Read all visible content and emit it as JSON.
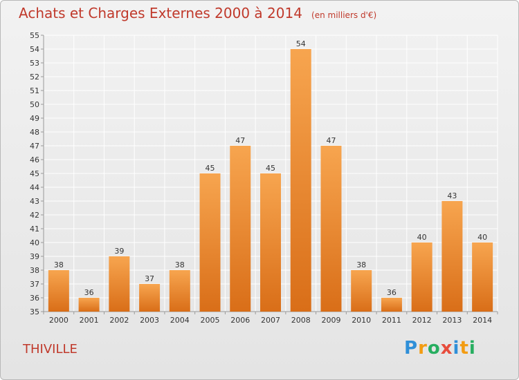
{
  "header": {
    "title": "Achats et Charges Externes 2000 à 2014",
    "subtitle": "(en milliers d'€)"
  },
  "footer": {
    "commune": "THIVILLE",
    "logo_letters": [
      "P",
      "r",
      "o",
      "x",
      "i",
      "t",
      "i"
    ],
    "logo_colors": [
      "#2f8fd8",
      "#f39c12",
      "#27ae60",
      "#e74c3c",
      "#2f8fd8",
      "#f39c12",
      "#27ae60"
    ]
  },
  "colors": {
    "bar_top": "#f7a54f",
    "bar_bottom": "#d96e18",
    "title": "#c0392b",
    "grid": "#ffffff",
    "axis": "#999999"
  },
  "chart_data": {
    "type": "bar",
    "categories": [
      "2000",
      "2001",
      "2002",
      "2003",
      "2004",
      "2005",
      "2006",
      "2007",
      "2008",
      "2009",
      "2010",
      "2011",
      "2012",
      "2013",
      "2014"
    ],
    "values": [
      38,
      36,
      39,
      37,
      38,
      45,
      47,
      45,
      54,
      47,
      38,
      36,
      40,
      43,
      40
    ],
    "ylim": [
      35,
      55
    ],
    "yticks": [
      35,
      36,
      37,
      38,
      39,
      40,
      41,
      42,
      43,
      44,
      45,
      46,
      47,
      48,
      49,
      50,
      51,
      52,
      53,
      54,
      55
    ],
    "grid": true,
    "data_labels": true
  }
}
